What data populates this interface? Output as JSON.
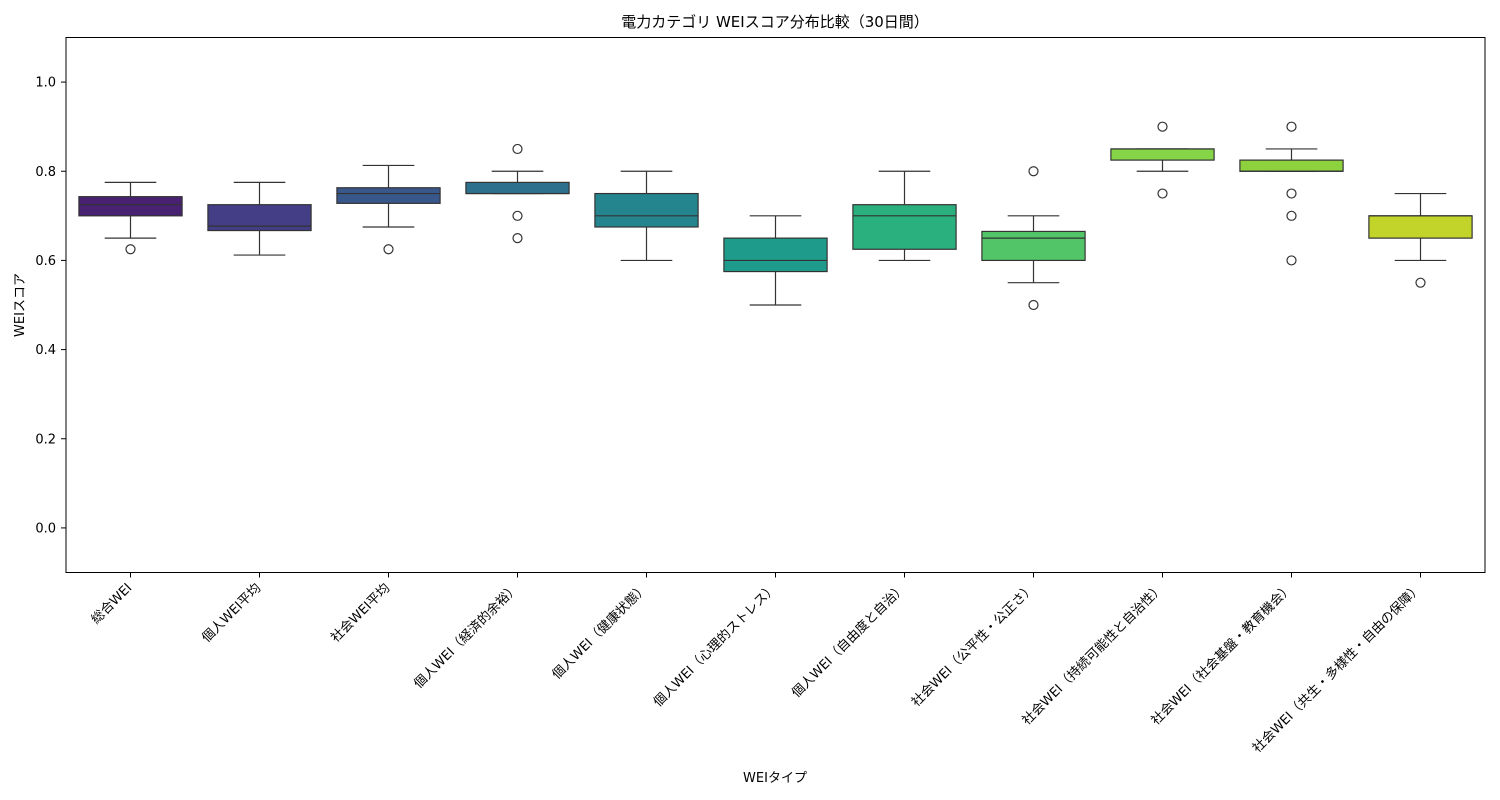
{
  "chart_data": {
    "type": "box",
    "title": "電力カテゴリ WEIスコア分布比較（30日間）",
    "xlabel": "WEIタイプ",
    "ylabel": "WEIスコア",
    "ylim": [
      -0.1,
      1.1
    ],
    "yticks": [
      0.0,
      0.2,
      0.4,
      0.6,
      0.8,
      1.0
    ],
    "ytick_labels": [
      "0.0",
      "0.2",
      "0.4",
      "0.6",
      "0.8",
      "1.0"
    ],
    "grid": false,
    "legend": "none",
    "categories": [
      "総合WEI",
      "個人WEI平均",
      "社会WEI平均",
      "個人WEI（経済的余裕）",
      "個人WEI（健康状態）",
      "個人WEI（心理的ストレス）",
      "個人WEI（自由度と自治）",
      "社会WEI（公平性・公正さ）",
      "社会WEI（持続可能性と自治性）",
      "社会WEI（社会基盤・教育機会）",
      "社会WEI（共生・多様性・自由の保障）"
    ],
    "boxes": [
      {
        "whisker_low": 0.65,
        "q1": 0.7,
        "median": 0.725,
        "q3": 0.743,
        "whisker_high": 0.775,
        "outliers": [
          0.625
        ],
        "color": "#482173"
      },
      {
        "whisker_low": 0.612,
        "q1": 0.667,
        "median": 0.677,
        "q3": 0.725,
        "whisker_high": 0.775,
        "outliers": [],
        "color": "#433e85"
      },
      {
        "whisker_low": 0.675,
        "q1": 0.728,
        "median": 0.75,
        "q3": 0.763,
        "whisker_high": 0.813,
        "outliers": [
          0.625
        ],
        "color": "#38588c"
      },
      {
        "whisker_low": 0.75,
        "q1": 0.75,
        "median": 0.75,
        "q3": 0.775,
        "whisker_high": 0.8,
        "outliers": [
          0.85,
          0.7,
          0.65
        ],
        "color": "#2d708e"
      },
      {
        "whisker_low": 0.6,
        "q1": 0.675,
        "median": 0.7,
        "q3": 0.75,
        "whisker_high": 0.8,
        "outliers": [],
        "color": "#25858e"
      },
      {
        "whisker_low": 0.5,
        "q1": 0.575,
        "median": 0.6,
        "q3": 0.65,
        "whisker_high": 0.7,
        "outliers": [],
        "color": "#1e9b8a"
      },
      {
        "whisker_low": 0.6,
        "q1": 0.625,
        "median": 0.7,
        "q3": 0.725,
        "whisker_high": 0.8,
        "outliers": [],
        "color": "#2ab07f"
      },
      {
        "whisker_low": 0.55,
        "q1": 0.6,
        "median": 0.65,
        "q3": 0.665,
        "whisker_high": 0.7,
        "outliers": [
          0.8,
          0.5
        ],
        "color": "#52c569"
      },
      {
        "whisker_low": 0.8,
        "q1": 0.825,
        "median": 0.85,
        "q3": 0.85,
        "whisker_high": 0.85,
        "outliers": [
          0.9,
          0.75
        ],
        "color": "#86d549"
      },
      {
        "whisker_low": 0.8,
        "q1": 0.8,
        "median": 0.8,
        "q3": 0.825,
        "whisker_high": 0.85,
        "outliers": [
          0.9,
          0.75,
          0.7,
          0.6
        ],
        "color": "#8ed13f"
      },
      {
        "whisker_low": 0.6,
        "q1": 0.65,
        "median": 0.7,
        "q3": 0.7,
        "whisker_high": 0.75,
        "outliers": [
          0.55
        ],
        "color": "#c2d32a"
      }
    ]
  }
}
